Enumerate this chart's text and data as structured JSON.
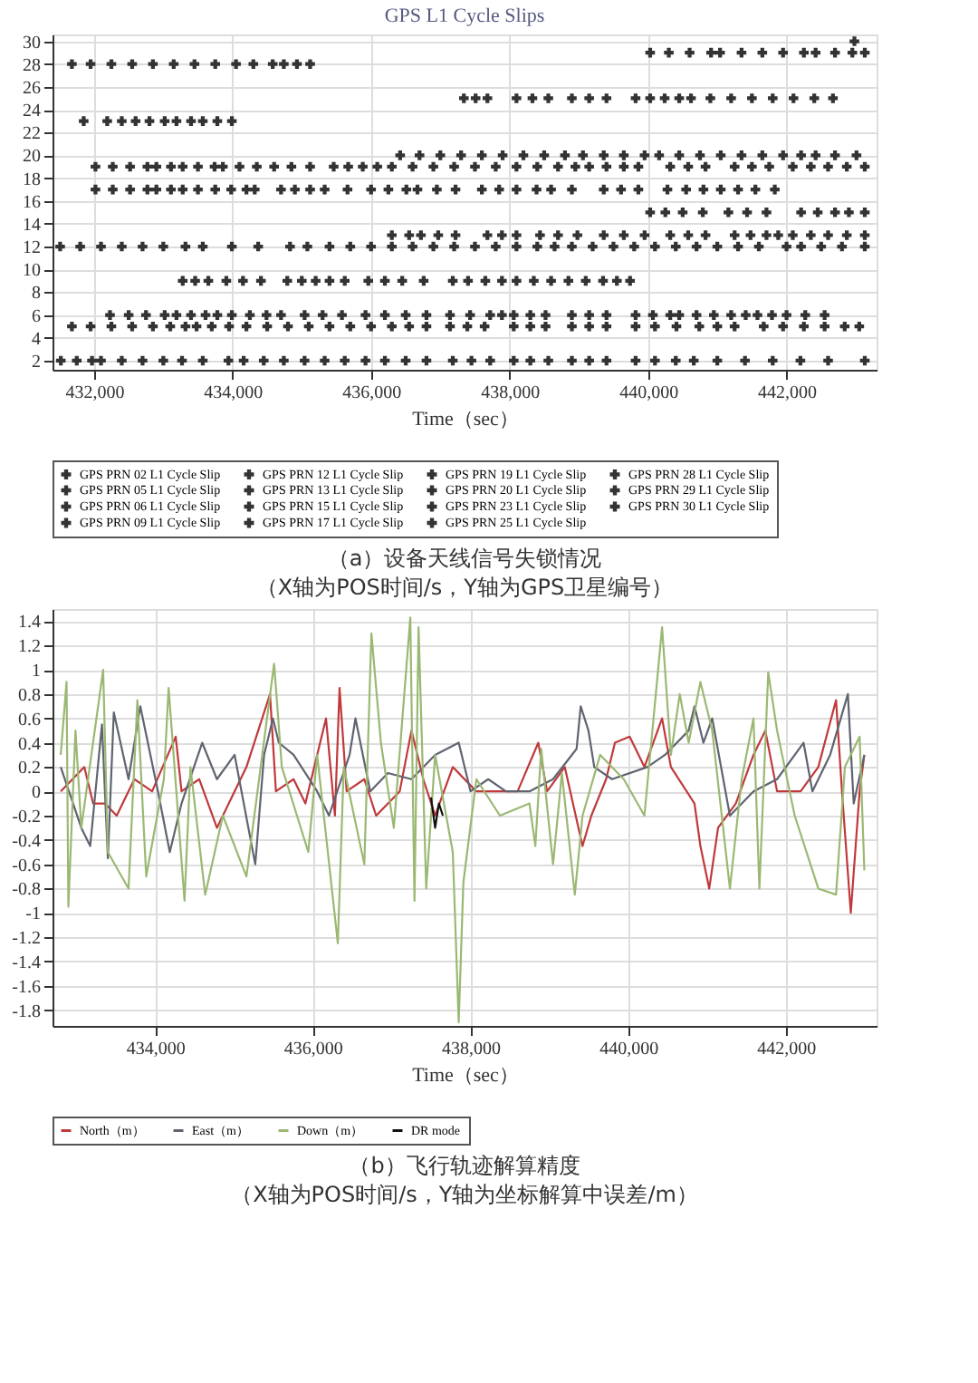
{
  "chart_data": [
    {
      "type": "scatter",
      "title": "GPS L1 Cycle Slips",
      "xlabel": "Time（sec）",
      "marker": "cross",
      "grid": true,
      "legend": "bottom",
      "xlim": [
        431400,
        443300
      ],
      "ylim": [
        1.2,
        30.6
      ],
      "xticks": [
        {
          "value": 432000,
          "label": "432,000"
        },
        {
          "value": 434000,
          "label": "434,000"
        },
        {
          "value": 436000,
          "label": "436,000"
        },
        {
          "value": 438000,
          "label": "438,000"
        },
        {
          "value": 440000,
          "label": "440,000"
        },
        {
          "value": 442000,
          "label": "442,000"
        }
      ],
      "yticks": [
        2,
        4,
        6,
        8,
        10,
        12,
        14,
        16,
        18,
        20,
        22,
        24,
        26,
        28,
        30
      ],
      "annotations": [
        "（a）设备天线信号失锁情况",
        "（X轴为POS时间/s，Y轴为GPS卫星编号）"
      ],
      "series": [
        {
          "name": "GPS PRN 02 L1 Cycle Slip",
          "color": "#333333",
          "x": [
            431520,
            431750,
            431970,
            432100,
            432400,
            432700,
            433000,
            433270,
            433570,
            433940,
            434160,
            434450,
            434740,
            435040,
            435330,
            435620,
            435920,
            436200,
            436500,
            436800,
            437180,
            437450,
            437720,
            438060,
            438300,
            438560,
            438900,
            439150,
            439400,
            439820,
            440100,
            440400,
            440660,
            441000,
            441400,
            441800,
            442200,
            442600,
            443130
          ],
          "values": [
            2,
            2,
            2,
            2,
            2,
            2,
            2,
            2,
            2,
            2,
            2,
            2,
            2,
            2,
            2,
            2,
            2,
            2,
            2,
            2,
            2,
            2,
            2,
            2,
            2,
            2,
            2,
            2,
            2,
            2,
            2,
            2,
            2,
            2,
            2,
            2,
            2,
            2,
            2
          ]
        },
        {
          "name": "GPS PRN 12 L1 Cycle Slip",
          "color": "#333333",
          "x": [
            431510,
            431800,
            432100,
            432400,
            432700,
            433000,
            433320,
            433570,
            433990,
            434370,
            434830,
            435080,
            435400,
            435700,
            436000,
            436300,
            436600,
            436900,
            437200,
            437500,
            437800,
            438100,
            438400,
            438650,
            438900,
            439200,
            439500,
            439800,
            440100,
            440400,
            440700,
            441000,
            441300,
            441600,
            442000,
            442210,
            442500,
            442800,
            443130
          ],
          "values": [
            12,
            12,
            12,
            12,
            12,
            12,
            12,
            12,
            12,
            12,
            12,
            12,
            12,
            12,
            12,
            12,
            12,
            12,
            12,
            12,
            12,
            12,
            12,
            12,
            12,
            12,
            12,
            12,
            12,
            12,
            12,
            12,
            12,
            12,
            12,
            12,
            12,
            12,
            12
          ]
        },
        {
          "name": "GPS PRN 19 L1 Cycle Slip",
          "color": "#333333",
          "x": [
            432020,
            432270,
            432520,
            432770,
            432900,
            433110,
            433280,
            433500,
            433740,
            433860,
            434100,
            434350,
            434600,
            434850,
            435120,
            435460,
            435670,
            435880,
            436090,
            436300,
            436600,
            436900,
            437200,
            437500,
            437800,
            438100,
            438400,
            438700,
            438950,
            439150,
            439400,
            439650,
            439860,
            440320,
            440580,
            440830,
            441250,
            441500,
            441750,
            442090,
            442350,
            442600,
            442870,
            443130
          ],
          "values": [
            19,
            19,
            19,
            19,
            19,
            19,
            19,
            19,
            19,
            19,
            19,
            19,
            19,
            19,
            19,
            19,
            19,
            19,
            19,
            19,
            19,
            19,
            19,
            19,
            19,
            19,
            19,
            19,
            19,
            19,
            19,
            19,
            19,
            19,
            19,
            19,
            19,
            19,
            19,
            19,
            19,
            19,
            19,
            19
          ]
        },
        {
          "name": "GPS PRN 28 L1 Cycle Slip",
          "color": "#333333",
          "x": [
            431680,
            431950,
            432250,
            432550,
            432850,
            433150,
            433450,
            433750,
            434050,
            434300,
            434580,
            434740,
            434930,
            435120
          ],
          "values": [
            28,
            28,
            28,
            28,
            28,
            28,
            28,
            28,
            28,
            28,
            28,
            28,
            28,
            28
          ]
        },
        {
          "name": "GPS PRN 05 L1 Cycle Slip",
          "color": "#333333",
          "x": [
            431680,
            431950,
            432250,
            432550,
            432850,
            433100,
            433320,
            433480,
            433700,
            433950,
            434200,
            434500,
            434800,
            435100,
            435400,
            435700,
            436000,
            436300,
            436550,
            436800,
            437140,
            437390,
            437640,
            438060,
            438300,
            438520,
            438900,
            439150,
            439400,
            439820,
            440100,
            440410,
            440740,
            441000,
            441250,
            441670,
            441950,
            442250,
            442550,
            442840,
            443050
          ],
          "values": [
            5,
            5,
            5,
            5,
            5,
            5,
            5,
            5,
            5,
            5,
            5,
            5,
            5,
            5,
            5,
            5,
            5,
            5,
            5,
            5,
            5,
            5,
            5,
            5,
            5,
            5,
            5,
            5,
            5,
            5,
            5,
            5,
            5,
            5,
            5,
            5,
            5,
            5,
            5,
            5,
            5
          ]
        },
        {
          "name": "GPS PRN 13 L1 Cycle Slip",
          "color": "#333333",
          "x": [
            436300,
            436550,
            436720,
            436970,
            437220,
            437680,
            437890,
            438100,
            438440,
            438700,
            438980,
            439360,
            439650,
            439950,
            440320,
            440580,
            440830,
            441250,
            441480,
            441710,
            441880,
            442090,
            442350,
            442600,
            442870,
            443130
          ],
          "values": [
            13,
            13,
            13,
            13,
            13,
            13,
            13,
            13,
            13,
            13,
            13,
            13,
            13,
            13,
            13,
            13,
            13,
            13,
            13,
            13,
            13,
            13,
            13,
            13,
            13,
            13
          ]
        },
        {
          "name": "GPS PRN 20 L1 Cycle Slip",
          "color": "#333333",
          "x": [
            436420,
            436700,
            437000,
            437300,
            437600,
            437900,
            438200,
            438500,
            438800,
            439060,
            439360,
            439650,
            439950,
            440160,
            440450,
            440750,
            441050,
            441350,
            441650,
            441950,
            442210,
            442420,
            442700,
            443010
          ],
          "values": [
            20,
            20,
            20,
            20,
            20,
            20,
            20,
            20,
            20,
            20,
            20,
            20,
            20,
            20,
            20,
            20,
            20,
            20,
            20,
            20,
            20,
            20,
            20,
            20
          ]
        },
        {
          "name": "GPS PRN 29 L1 Cycle Slip",
          "color": "#333333",
          "x": [
            440030,
            440300,
            440600,
            440910,
            441040,
            441350,
            441650,
            441950,
            442250,
            442420,
            442700,
            442950,
            443130
          ],
          "values": [
            29,
            29,
            29,
            29,
            29,
            29,
            29,
            29,
            29,
            29,
            29,
            29,
            29
          ]
        },
        {
          "name": "GPS PRN 06 L1 Cycle Slip",
          "color": "#333333",
          "x": [
            432230,
            432500,
            432750,
            433020,
            433190,
            433400,
            433610,
            433780,
            433990,
            434250,
            434490,
            434700,
            435040,
            435300,
            435580,
            435920,
            436200,
            436500,
            436800,
            437140,
            437430,
            437720,
            437890,
            438060,
            438300,
            438520,
            438900,
            439150,
            439400,
            439820,
            440070,
            440320,
            440450,
            440700,
            440950,
            441200,
            441410,
            441580,
            441790,
            442000,
            442270,
            442550
          ],
          "values": [
            6,
            6,
            6,
            6,
            6,
            6,
            6,
            6,
            6,
            6,
            6,
            6,
            6,
            6,
            6,
            6,
            6,
            6,
            6,
            6,
            6,
            6,
            6,
            6,
            6,
            6,
            6,
            6,
            6,
            6,
            6,
            6,
            6,
            6,
            6,
            6,
            6,
            6,
            6,
            6,
            6,
            6
          ]
        },
        {
          "name": "GPS PRN 15 L1 Cycle Slip",
          "color": "#333333",
          "x": [
            440030,
            440250,
            440500,
            440790,
            441160,
            441430,
            441710,
            442210,
            442450,
            442700,
            442900,
            443130
          ],
          "values": [
            15,
            15,
            15,
            15,
            15,
            15,
            15,
            15,
            15,
            15,
            15,
            15
          ]
        },
        {
          "name": "GPS PRN 23 L1 Cycle Slip",
          "color": "#333333",
          "x": [
            431850,
            432190,
            432400,
            432600,
            432800,
            433020,
            433190,
            433400,
            433570,
            433780,
            433990
          ],
          "values": [
            23,
            23,
            23,
            23,
            23,
            23,
            23,
            23,
            23,
            23,
            23
          ]
        },
        {
          "name": "GPS PRN 30 L1 Cycle Slip",
          "color": "#333333",
          "x": [
            442980
          ],
          "values": [
            30
          ]
        },
        {
          "name": "GPS PRN 09 L1 Cycle Slip",
          "color": "#333333",
          "x": [
            433280,
            433460,
            433650,
            433910,
            434150,
            434410,
            434790,
            435000,
            435200,
            435400,
            435620,
            435960,
            436200,
            436450,
            436760,
            437180,
            437400,
            437650,
            437890,
            438100,
            438350,
            438600,
            438850,
            439100,
            439350,
            439550,
            439740
          ],
          "values": [
            9,
            9,
            9,
            9,
            9,
            9,
            9,
            9,
            9,
            9,
            9,
            9,
            9,
            9,
            9,
            9,
            9,
            9,
            9,
            9,
            9,
            9,
            9,
            9,
            9,
            9,
            9
          ]
        },
        {
          "name": "GPS PRN 17 L1 Cycle Slip",
          "color": "#333333",
          "x": [
            432020,
            432270,
            432520,
            432770,
            432900,
            433110,
            433280,
            433500,
            433750,
            433980,
            434200,
            434320,
            434700,
            434900,
            435120,
            435330,
            435660,
            436000,
            436250,
            436510,
            436670,
            436950,
            437220,
            437600,
            437850,
            438100,
            438390,
            438600,
            438900,
            439360,
            439610,
            439860,
            440280,
            440550,
            440800,
            441050,
            441300,
            441550,
            441830
          ],
          "values": [
            17,
            17,
            17,
            17,
            17,
            17,
            17,
            17,
            17,
            17,
            17,
            17,
            17,
            17,
            17,
            17,
            17,
            17,
            17,
            17,
            17,
            17,
            17,
            17,
            17,
            17,
            17,
            17,
            17,
            17,
            17,
            17,
            17,
            17,
            17,
            17,
            17,
            17,
            17
          ]
        },
        {
          "name": "GPS PRN 25 L1 Cycle Slip",
          "color": "#333333",
          "x": [
            437340,
            437510,
            437680,
            438100,
            438330,
            438560,
            438900,
            439150,
            439400,
            439820,
            440030,
            440240,
            440450,
            440620,
            440900,
            441200,
            441500,
            441800,
            442100,
            442400,
            442670
          ],
          "values": [
            25,
            25,
            25,
            25,
            25,
            25,
            25,
            25,
            25,
            25,
            25,
            25,
            25,
            25,
            25,
            25,
            25,
            25,
            25,
            25,
            25
          ]
        }
      ]
    },
    {
      "type": "line",
      "xlabel": "Time（sec）",
      "grid": true,
      "legend": "bottom",
      "line_style": "solid",
      "xlim": [
        432700,
        443150
      ],
      "ylim": [
        -1.93,
        1.5
      ],
      "xticks": [
        {
          "value": 434000,
          "label": "434,000"
        },
        {
          "value": 436000,
          "label": "436,000"
        },
        {
          "value": 438000,
          "label": "438,000"
        },
        {
          "value": 440000,
          "label": "440,000"
        },
        {
          "value": 442000,
          "label": "442,000"
        }
      ],
      "yticks": [
        -1.8,
        -1.6,
        -1.4,
        -1.2,
        -1,
        -0.8,
        -0.6,
        -0.4,
        -0.2,
        0,
        0.2,
        0.4,
        0.6,
        0.8,
        1,
        1.2,
        1.4
      ],
      "annotations": [
        "（b）飞行轨迹解算精度",
        "（X轴为POS时间/s，Y轴为坐标解算中误差/m）"
      ],
      "series": [
        {
          "name": "North（m）",
          "color": "#c0393b",
          "x": [
            432804,
            433103,
            433215,
            433364,
            433514,
            433738,
            433963,
            434262,
            434336,
            434561,
            434785,
            435009,
            435159,
            435458,
            435533,
            435757,
            435907,
            436168,
            436281,
            436340,
            436430,
            436654,
            436804,
            437103,
            437252,
            437402,
            437552,
            437776,
            438075,
            438299,
            438598,
            438860,
            438972,
            439196,
            439421,
            439533,
            439720,
            439832,
            440019,
            440206,
            440430,
            440542,
            440841,
            440916,
            441028,
            441140,
            441365,
            441589,
            441739,
            441888,
            442187,
            442411,
            442636,
            442711,
            442823,
            442935,
            442995
          ],
          "values": [
            0,
            0.2,
            -0.1,
            -0.1,
            -0.2,
            0.1,
            0,
            0.45,
            0,
            0.1,
            -0.3,
            0,
            0.2,
            0.8,
            0,
            0.1,
            -0.1,
            0.6,
            -0.2,
            0.85,
            0,
            0.1,
            -0.2,
            0,
            0.5,
            0.1,
            -0.2,
            0.2,
            0,
            0,
            0,
            0.4,
            0,
            0.2,
            -0.45,
            -0.2,
            0.1,
            0.4,
            0.45,
            0.2,
            0.6,
            0.2,
            -0.1,
            -0.45,
            -0.8,
            -0.3,
            -0.1,
            0.3,
            0.5,
            0,
            0,
            0.2,
            0.75,
            0,
            -1.0,
            0,
            0.3
          ]
        },
        {
          "name": "East（m）",
          "color": "#5f6470",
          "x": [
            432804,
            433065,
            433178,
            433327,
            433402,
            433477,
            433664,
            433813,
            434037,
            434187,
            434336,
            434598,
            434785,
            435009,
            435271,
            435383,
            435495,
            435570,
            435757,
            436056,
            436206,
            436467,
            436542,
            436729,
            436953,
            437252,
            437552,
            437851,
            438001,
            438225,
            438449,
            438748,
            439047,
            439346,
            439398,
            439496,
            439570,
            439795,
            440243,
            440467,
            440767,
            440841,
            440954,
            441066,
            441290,
            441589,
            441888,
            442224,
            442336,
            442561,
            442786,
            442860,
            442995
          ],
          "values": [
            0.2,
            -0.3,
            -0.45,
            0.55,
            -0.55,
            0.65,
            0.1,
            0.7,
            0,
            -0.5,
            -0.1,
            0.4,
            0.1,
            0.3,
            -0.6,
            0.3,
            0.6,
            0.4,
            0.3,
            0,
            -0.2,
            0.3,
            0.6,
            0,
            0.15,
            0.1,
            0.3,
            0.4,
            0,
            0.1,
            0,
            0,
            0.1,
            0.35,
            0.7,
            0.5,
            0.2,
            0.1,
            0.2,
            0.3,
            0.5,
            0.7,
            0.4,
            0.6,
            -0.2,
            0,
            0.1,
            0.4,
            0,
            0.3,
            0.8,
            -0.1,
            0.3
          ]
        },
        {
          "name": "Down（m）",
          "color": "#9bb873",
          "x": [
            432804,
            432878,
            432901,
            432991,
            433065,
            433342,
            433402,
            433664,
            433776,
            433888,
            434112,
            434172,
            434374,
            434449,
            434636,
            434860,
            435159,
            435510,
            435608,
            435944,
            436056,
            436318,
            436393,
            436654,
            436744,
            436864,
            437028,
            437237,
            437290,
            437342,
            437439,
            437552,
            437776,
            437851,
            437910,
            438075,
            438374,
            438748,
            438823,
            438897,
            439047,
            439159,
            439323,
            439421,
            439645,
            439944,
            440206,
            440430,
            440542,
            440654,
            440767,
            440916,
            441066,
            441290,
            441440,
            441589,
            441664,
            441776,
            441888,
            442112,
            442411,
            442636,
            442748,
            442935,
            442995
          ],
          "values": [
            0.3,
            0.9,
            -0.95,
            0.5,
            -0.3,
            1.0,
            -0.5,
            -0.8,
            0.75,
            -0.7,
            0.1,
            0.85,
            -0.9,
            0.2,
            -0.85,
            -0.2,
            -0.7,
            1.05,
            0.2,
            -0.5,
            0.3,
            -1.25,
            0.2,
            -0.6,
            1.3,
            0.4,
            -0.3,
            1.43,
            -0.9,
            1.35,
            -0.8,
            0.3,
            -0.5,
            -1.9,
            -0.75,
            0.1,
            -0.2,
            -0.1,
            -0.45,
            0.35,
            -0.6,
            0.15,
            -0.85,
            -0.2,
            0.3,
            0.1,
            -0.2,
            1.35,
            0.3,
            0.8,
            0.4,
            0.9,
            0.5,
            -0.8,
            0.1,
            0.6,
            -0.8,
            0.98,
            0.5,
            -0.2,
            -0.8,
            -0.85,
            0.2,
            0.45,
            -0.65
          ]
        },
        {
          "name": "DR mode",
          "color": "#111111",
          "x": [
            437500,
            437552,
            437600,
            437650
          ],
          "values": [
            -0.05,
            -0.3,
            -0.1,
            -0.2
          ]
        }
      ]
    }
  ]
}
